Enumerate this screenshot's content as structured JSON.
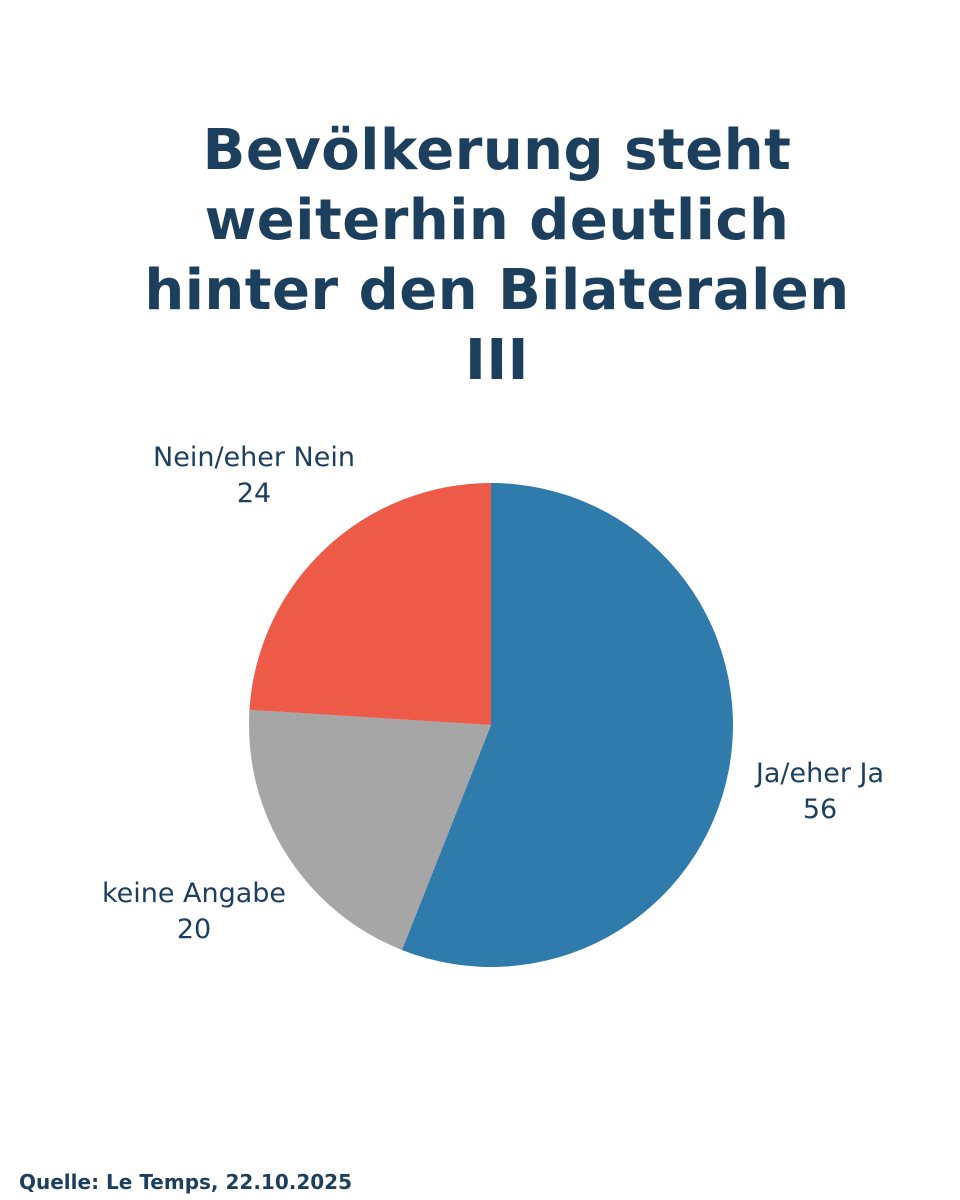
{
  "chart_data": {
    "type": "pie",
    "title": "Bevölkerung steht weiterhin deutlich hinter den Bilateralen III",
    "slices": [
      {
        "label": "Ja/eher Ja",
        "value": 56,
        "color": "#2f7bac"
      },
      {
        "label": "keine Angabe",
        "value": 20,
        "color": "#a6a6a6"
      },
      {
        "label": "Nein/eher Nein",
        "value": 24,
        "color": "#ed5a48"
      }
    ],
    "start_angle": "12 o'clock",
    "direction": "clockwise"
  },
  "source": "Quelle: Le Temps, 22.10.2025"
}
